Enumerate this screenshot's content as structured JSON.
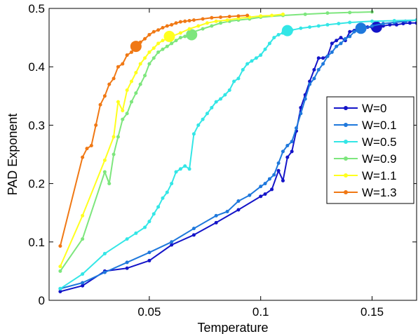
{
  "chart_data": {
    "type": "line",
    "xlabel": "Temperature",
    "ylabel": "PAD Exponent",
    "xlim": [
      0.005,
      0.17
    ],
    "ylim": [
      0,
      0.5
    ],
    "xticks": [
      0.05,
      0.1,
      0.15
    ],
    "xtick_labels": [
      "0.05",
      "0.1",
      "0.15"
    ],
    "yticks": [
      0,
      0.1,
      0.2,
      0.3,
      0.4,
      0.5
    ],
    "ytick_labels": [
      "0",
      "0.1",
      "0.2",
      "0.3",
      "0.4",
      "0.5"
    ],
    "legend_position": "right",
    "series": [
      {
        "name": "W=0",
        "color": "#1414c8",
        "x": [
          0.01,
          0.02,
          0.03,
          0.04,
          0.05,
          0.06,
          0.07,
          0.08,
          0.09,
          0.1,
          0.102,
          0.105,
          0.108,
          0.11,
          0.112,
          0.114,
          0.116,
          0.118,
          0.12,
          0.122,
          0.124,
          0.126,
          0.128,
          0.13,
          0.132,
          0.134,
          0.136,
          0.138,
          0.14,
          0.142,
          0.144,
          0.146,
          0.148,
          0.15,
          0.152,
          0.155,
          0.158,
          0.161,
          0.164,
          0.167,
          0.17
        ],
        "y": [
          0.015,
          0.025,
          0.05,
          0.055,
          0.068,
          0.095,
          0.112,
          0.133,
          0.155,
          0.178,
          0.182,
          0.19,
          0.222,
          0.205,
          0.245,
          0.255,
          0.29,
          0.33,
          0.352,
          0.375,
          0.395,
          0.415,
          0.415,
          0.418,
          0.44,
          0.445,
          0.45,
          0.445,
          0.46,
          0.462,
          0.468,
          0.466,
          0.468,
          0.468,
          0.468,
          0.47,
          0.472,
          0.472,
          0.474,
          0.475,
          0.475
        ],
        "marker": {
          "x": 0.152,
          "y": 0.468
        }
      },
      {
        "name": "W=0.1",
        "color": "#1e78dc",
        "x": [
          0.01,
          0.02,
          0.03,
          0.04,
          0.05,
          0.06,
          0.07,
          0.08,
          0.085,
          0.09,
          0.095,
          0.1,
          0.102,
          0.104,
          0.106,
          0.108,
          0.11,
          0.112,
          0.114,
          0.116,
          0.118,
          0.12,
          0.122,
          0.124,
          0.126,
          0.128,
          0.13,
          0.132,
          0.134,
          0.136,
          0.138,
          0.14,
          0.142,
          0.144,
          0.146,
          0.15,
          0.155,
          0.16,
          0.165,
          0.17
        ],
        "y": [
          0.02,
          0.03,
          0.048,
          0.065,
          0.082,
          0.1,
          0.123,
          0.145,
          0.152,
          0.17,
          0.18,
          0.195,
          0.2,
          0.208,
          0.215,
          0.235,
          0.255,
          0.265,
          0.272,
          0.295,
          0.32,
          0.345,
          0.37,
          0.38,
          0.395,
          0.405,
          0.418,
          0.425,
          0.435,
          0.44,
          0.448,
          0.452,
          0.46,
          0.462,
          0.466,
          0.47,
          0.474,
          0.476,
          0.478,
          0.48
        ],
        "marker": {
          "x": 0.145,
          "y": 0.466
        }
      },
      {
        "name": "W=0.5",
        "color": "#33e6e6",
        "x": [
          0.01,
          0.02,
          0.03,
          0.04,
          0.044,
          0.048,
          0.05,
          0.052,
          0.054,
          0.056,
          0.058,
          0.06,
          0.062,
          0.064,
          0.066,
          0.068,
          0.07,
          0.072,
          0.074,
          0.076,
          0.078,
          0.08,
          0.082,
          0.084,
          0.086,
          0.088,
          0.09,
          0.092,
          0.094,
          0.096,
          0.098,
          0.1,
          0.102,
          0.104,
          0.106,
          0.108,
          0.11,
          0.112,
          0.114,
          0.118,
          0.122,
          0.126,
          0.13,
          0.135,
          0.14,
          0.15,
          0.16,
          0.17
        ],
        "y": [
          0.02,
          0.045,
          0.08,
          0.105,
          0.115,
          0.125,
          0.135,
          0.148,
          0.16,
          0.175,
          0.185,
          0.2,
          0.22,
          0.225,
          0.23,
          0.225,
          0.285,
          0.3,
          0.31,
          0.32,
          0.33,
          0.34,
          0.345,
          0.352,
          0.36,
          0.375,
          0.38,
          0.395,
          0.405,
          0.41,
          0.415,
          0.42,
          0.43,
          0.44,
          0.45,
          0.455,
          0.458,
          0.462,
          0.463,
          0.466,
          0.468,
          0.47,
          0.472,
          0.474,
          0.476,
          0.478,
          0.479,
          0.48
        ],
        "marker": {
          "x": 0.112,
          "y": 0.462
        }
      },
      {
        "name": "W=0.9",
        "color": "#7de67d",
        "x": [
          0.01,
          0.02,
          0.03,
          0.032,
          0.034,
          0.036,
          0.038,
          0.04,
          0.042,
          0.044,
          0.046,
          0.048,
          0.05,
          0.052,
          0.054,
          0.056,
          0.058,
          0.06,
          0.062,
          0.064,
          0.066,
          0.068,
          0.07,
          0.074,
          0.078,
          0.082,
          0.086,
          0.09,
          0.095,
          0.1,
          0.11,
          0.12,
          0.13,
          0.14,
          0.15
        ],
        "y": [
          0.05,
          0.105,
          0.22,
          0.2,
          0.25,
          0.28,
          0.31,
          0.32,
          0.34,
          0.355,
          0.37,
          0.385,
          0.405,
          0.415,
          0.425,
          0.43,
          0.435,
          0.44,
          0.445,
          0.45,
          0.452,
          0.455,
          0.46,
          0.465,
          0.47,
          0.475,
          0.478,
          0.48,
          0.482,
          0.485,
          0.488,
          0.49,
          0.492,
          0.493,
          0.494
        ],
        "marker": {
          "x": 0.069,
          "y": 0.455
        }
      },
      {
        "name": "W=1.1",
        "color": "#ffff1e",
        "x": [
          0.01,
          0.02,
          0.03,
          0.034,
          0.036,
          0.038,
          0.04,
          0.042,
          0.044,
          0.046,
          0.048,
          0.05,
          0.052,
          0.054,
          0.056,
          0.058,
          0.06,
          0.064,
          0.068,
          0.072,
          0.076,
          0.08,
          0.085,
          0.09,
          0.095,
          0.1,
          0.105,
          0.11
        ],
        "y": [
          0.058,
          0.145,
          0.24,
          0.28,
          0.34,
          0.325,
          0.36,
          0.375,
          0.39,
          0.405,
          0.415,
          0.425,
          0.432,
          0.44,
          0.445,
          0.448,
          0.452,
          0.458,
          0.465,
          0.47,
          0.475,
          0.478,
          0.48,
          0.483,
          0.485,
          0.487,
          0.488,
          0.49
        ],
        "marker": {
          "x": 0.059,
          "y": 0.452
        }
      },
      {
        "name": "W=1.3",
        "color": "#f07814",
        "x": [
          0.01,
          0.02,
          0.022,
          0.024,
          0.026,
          0.028,
          0.03,
          0.032,
          0.034,
          0.036,
          0.038,
          0.04,
          0.042,
          0.044,
          0.046,
          0.048,
          0.05,
          0.052,
          0.054,
          0.056,
          0.058,
          0.06,
          0.062,
          0.064,
          0.066,
          0.068,
          0.07,
          0.074,
          0.078,
          0.082,
          0.086,
          0.09,
          0.094
        ],
        "y": [
          0.093,
          0.245,
          0.26,
          0.265,
          0.3,
          0.335,
          0.35,
          0.37,
          0.38,
          0.4,
          0.405,
          0.42,
          0.425,
          0.435,
          0.442,
          0.448,
          0.455,
          0.46,
          0.463,
          0.467,
          0.47,
          0.472,
          0.475,
          0.477,
          0.478,
          0.479,
          0.48,
          0.482,
          0.484,
          0.485,
          0.486,
          0.487,
          0.488
        ],
        "marker": {
          "x": 0.044,
          "y": 0.435
        }
      }
    ]
  }
}
